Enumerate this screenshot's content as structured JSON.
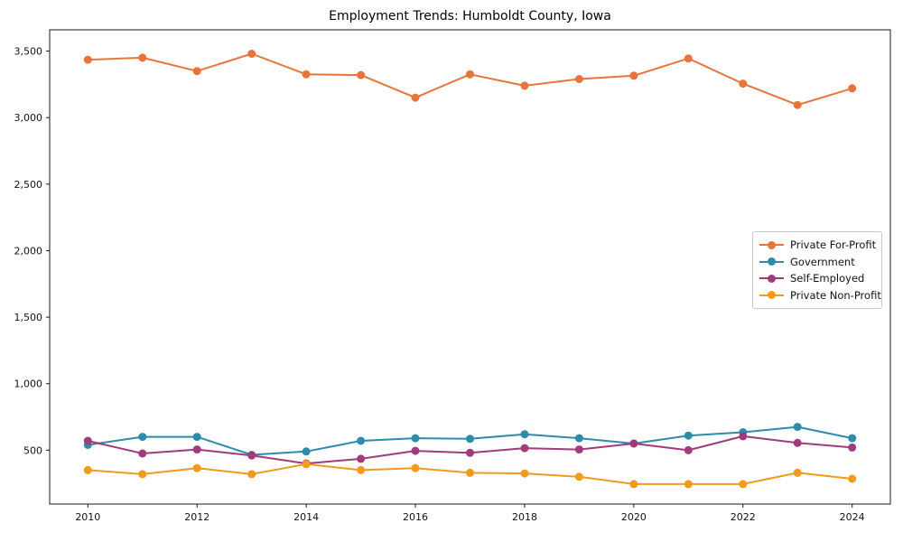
{
  "chart_data": {
    "type": "line",
    "title": "Employment Trends: Humboldt County, Iowa",
    "xlabel": "",
    "ylabel": "",
    "grid": false,
    "legend_position": "center right",
    "xlim": [
      2009.3,
      2024.7
    ],
    "ylim": [
      95,
      3660
    ],
    "x": [
      2010,
      2011,
      2012,
      2013,
      2014,
      2015,
      2016,
      2017,
      2018,
      2019,
      2020,
      2021,
      2022,
      2023,
      2024
    ],
    "xticks": {
      "values": [
        2010,
        2012,
        2014,
        2016,
        2018,
        2020,
        2022,
        2024
      ],
      "labels": [
        "2010",
        "2012",
        "2014",
        "2016",
        "2018",
        "2020",
        "2022",
        "2024"
      ]
    },
    "yticks": {
      "values": [
        500,
        1000,
        1500,
        2000,
        2500,
        3000,
        3500
      ],
      "labels": [
        "500",
        "1,000",
        "1,500",
        "2,000",
        "2,500",
        "3,000",
        "3,500"
      ]
    },
    "series": [
      {
        "name": "Private For-Profit",
        "color": "#E8743B",
        "values": [
          3435,
          3450,
          3350,
          3480,
          3325,
          3320,
          3150,
          3325,
          3240,
          3290,
          3315,
          3445,
          3255,
          3095,
          3220
        ]
      },
      {
        "name": "Government",
        "color": "#2E8BAB",
        "values": [
          540,
          600,
          600,
          465,
          490,
          570,
          590,
          585,
          620,
          590,
          550,
          610,
          635,
          675,
          590
        ]
      },
      {
        "name": "Self-Employed",
        "color": "#A23B7C",
        "values": [
          570,
          475,
          505,
          460,
          400,
          435,
          495,
          480,
          515,
          505,
          550,
          500,
          605,
          555,
          520
        ]
      },
      {
        "name": "Private Non-Profit",
        "color": "#F09A1E",
        "values": [
          350,
          320,
          365,
          320,
          395,
          350,
          365,
          330,
          325,
          300,
          245,
          245,
          245,
          330,
          285
        ]
      }
    ]
  }
}
